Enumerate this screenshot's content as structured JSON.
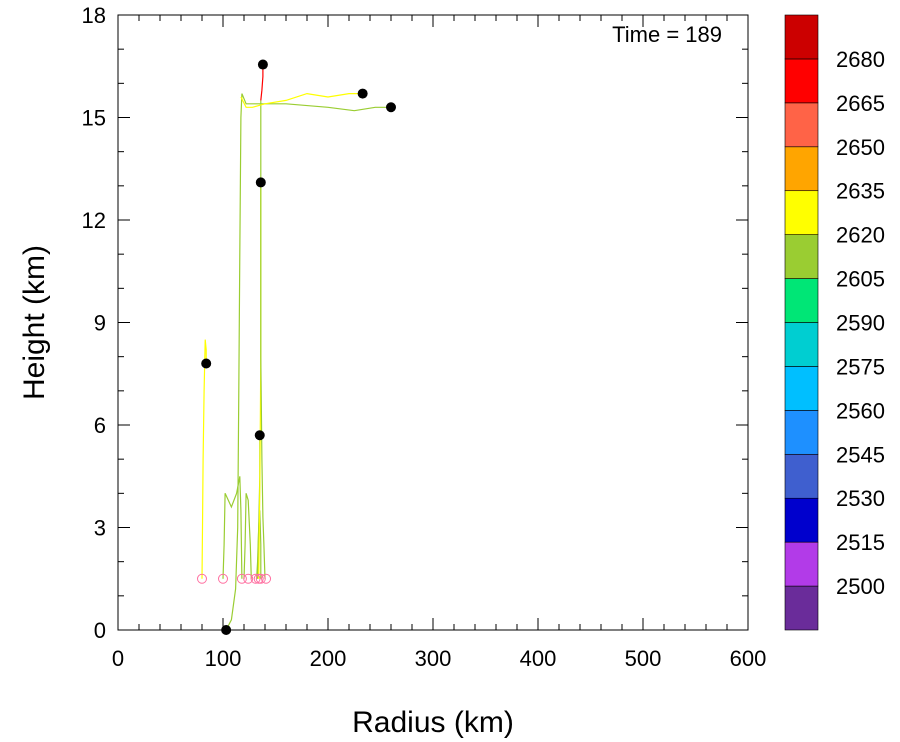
{
  "chart_data": {
    "type": "line",
    "title": "",
    "xlabel": "Radius (km)",
    "ylabel": "Height (km)",
    "xlim": [
      0,
      600
    ],
    "ylim": [
      0,
      18
    ],
    "xticks": [
      0,
      100,
      200,
      300,
      400,
      500,
      600
    ],
    "yticks": [
      0,
      3,
      6,
      9,
      12,
      15,
      18
    ],
    "grid": false,
    "annotation": "Time = 189",
    "colorbar": {
      "position": "right",
      "labels": [
        "2500",
        "2515",
        "2530",
        "2545",
        "2560",
        "2575",
        "2590",
        "2605",
        "2620",
        "2635",
        "2650",
        "2665",
        "2680"
      ],
      "colors": [
        "#6a2c9a",
        "#b23be8",
        "#0000cd",
        "#3f5fcf",
        "#1e90ff",
        "#00bfff",
        "#00ced1",
        "#00e676",
        "#9acd32",
        "#ffff00",
        "#ffa500",
        "#ff6347",
        "#ff0000",
        "#cc0000"
      ]
    },
    "trajectories": [
      {
        "color": "#ffff00",
        "points": [
          [
            80,
            1.5
          ],
          [
            80.5,
            3.0
          ],
          [
            81,
            5.0
          ],
          [
            82,
            7.0
          ],
          [
            83,
            8.5
          ],
          [
            84,
            8.2
          ],
          [
            84,
            7.8
          ]
        ]
      },
      {
        "color": "#9acd32",
        "points": [
          [
            100,
            1.5
          ],
          [
            101,
            2.5
          ],
          [
            102,
            4.0
          ],
          [
            108,
            3.6
          ],
          [
            113,
            4.0
          ],
          [
            116,
            4.5
          ],
          [
            117,
            3.5
          ],
          [
            117.5,
            2.5
          ],
          [
            118,
            1.5
          ]
        ]
      },
      {
        "color": "#9acd32",
        "points": [
          [
            103,
            0.0
          ],
          [
            108,
            0.3
          ],
          [
            112,
            1.2
          ],
          [
            114,
            3.0
          ],
          [
            115,
            7.0
          ],
          [
            116,
            11.0
          ],
          [
            117,
            15.0
          ],
          [
            118,
            15.7
          ],
          [
            122,
            15.4
          ],
          [
            135,
            15.4
          ],
          [
            160,
            15.4
          ],
          [
            200,
            15.3
          ],
          [
            225,
            15.2
          ],
          [
            245,
            15.3
          ],
          [
            260,
            15.3
          ]
        ]
      },
      {
        "color": "#9acd32",
        "points": [
          [
            120,
            1.5
          ],
          [
            121,
            2.5
          ],
          [
            122,
            4.0
          ],
          [
            124,
            3.8
          ],
          [
            126,
            2.5
          ],
          [
            127,
            1.5
          ]
        ]
      },
      {
        "color": "#9acd32",
        "points": [
          [
            132,
            1.5
          ],
          [
            133,
            2.0
          ],
          [
            134,
            3.0
          ],
          [
            135,
            3.5
          ],
          [
            136,
            2.5
          ],
          [
            136,
            1.5
          ]
        ]
      },
      {
        "color": "#9acd32",
        "points": [
          [
            133,
            1.5
          ],
          [
            134,
            3.0
          ],
          [
            135,
            4.5
          ],
          [
            135,
            5.7
          ]
        ]
      },
      {
        "color": "#ffff00",
        "points": [
          [
            134,
            1.5
          ],
          [
            135,
            4.0
          ],
          [
            136,
            8.0
          ],
          [
            136,
            11.0
          ],
          [
            136,
            13.1
          ]
        ]
      },
      {
        "color": "#9acd32",
        "points": [
          [
            140,
            1.5
          ],
          [
            139,
            2.5
          ],
          [
            138,
            3.3
          ],
          [
            137,
            5.0
          ],
          [
            136,
            8.0
          ],
          [
            136,
            11.0
          ],
          [
            136,
            14.0
          ],
          [
            136,
            15.4
          ],
          [
            136,
            15.5
          ]
        ]
      },
      {
        "color": "#ff0000",
        "points": [
          [
            136,
            15.5
          ],
          [
            137,
            15.8
          ],
          [
            138,
            16.2
          ],
          [
            138,
            16.5
          ]
        ]
      },
      {
        "color": "#ffff00",
        "points": [
          [
            117,
            15.6
          ],
          [
            122,
            15.3
          ],
          [
            128,
            15.3
          ],
          [
            140,
            15.4
          ],
          [
            160,
            15.5
          ],
          [
            180,
            15.7
          ],
          [
            200,
            15.6
          ],
          [
            220,
            15.7
          ],
          [
            233,
            15.7
          ]
        ]
      }
    ],
    "start_points": [
      [
        80,
        1.5
      ],
      [
        100,
        1.5
      ],
      [
        118,
        1.5
      ],
      [
        124,
        1.5
      ],
      [
        131,
        1.5
      ],
      [
        134,
        1.5
      ],
      [
        136,
        1.5
      ],
      [
        141,
        1.5
      ]
    ],
    "end_points": [
      [
        84,
        7.8
      ],
      [
        103,
        0.0
      ],
      [
        135,
        5.7
      ],
      [
        136,
        13.1
      ],
      [
        138,
        16.55
      ],
      [
        233,
        15.7
      ],
      [
        260,
        15.3
      ]
    ]
  }
}
